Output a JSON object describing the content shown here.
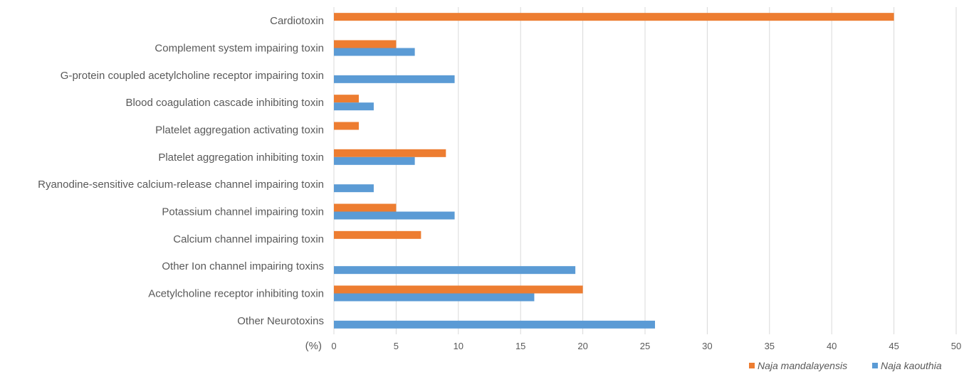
{
  "chart_data": {
    "type": "bar",
    "orientation": "horizontal",
    "categories": [
      "Cardiotoxin",
      "Complement system impairing toxin",
      "G-protein coupled acetylcholine receptor impairing toxin",
      "Blood coagulation cascade inhibiting toxin",
      "Platelet aggregation activating toxin",
      "Platelet aggregation inhibiting toxin",
      "Ryanodine-sensitive calcium-release channel impairing toxin",
      "Potassium channel impairing toxin",
      "Calcium channel impairing toxin",
      "Other Ion channel impairing toxins",
      "Acetylcholine receptor inhibiting toxin",
      "Other Neurotoxins"
    ],
    "series": [
      {
        "name": "Naja mandalayensis",
        "color": "#ED7D31",
        "values": [
          45,
          5,
          0,
          2,
          2,
          9,
          0,
          5,
          7,
          0,
          20,
          0
        ]
      },
      {
        "name": "Naja kaouthia",
        "color": "#5B9BD5",
        "values": [
          0,
          6.5,
          9.7,
          3.2,
          0,
          6.5,
          3.2,
          9.7,
          0,
          19.4,
          16.1,
          25.8
        ]
      }
    ],
    "x_unit_label": "(%)",
    "xlim": [
      0,
      50
    ],
    "x_ticks": [
      0,
      5,
      10,
      15,
      20,
      25,
      30,
      35,
      40,
      45,
      50
    ],
    "grid": "vertical",
    "legend_position": "bottom-right"
  }
}
